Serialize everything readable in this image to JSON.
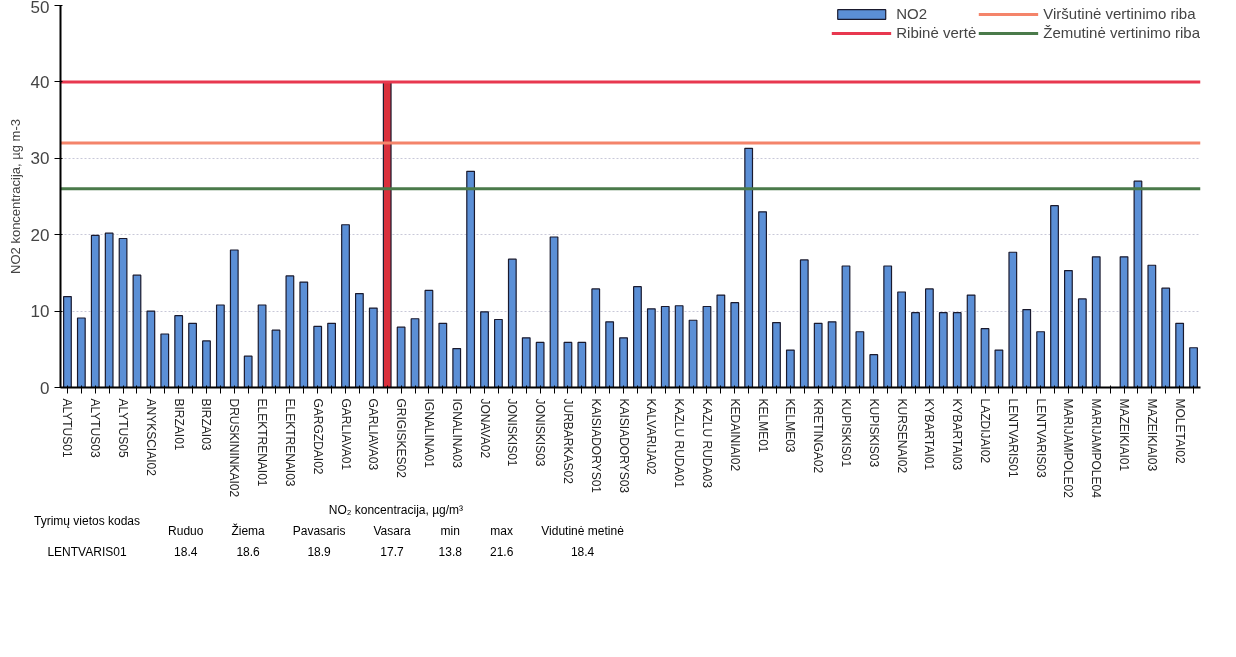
{
  "chart_data": {
    "type": "bar",
    "ylabel": "NO2 koncentracija, µg m-3",
    "categories": [
      "ALYTUS01",
      null,
      "ALYTUS03",
      null,
      "ALYTUS05",
      null,
      "ANYKSCIAI02",
      null,
      "BIRZAI01",
      null,
      "BIRZAI03",
      null,
      "DRUSKININKAI02",
      null,
      "ELEKTRENAI01",
      null,
      "ELEKTRENAI03",
      null,
      "GARGZDAI02",
      null,
      "GARLIAVA01",
      null,
      "GARLIAVA03",
      null,
      "GRIGISKES02",
      null,
      "IGNALINA01",
      null,
      "IGNALINA03",
      null,
      "JONAVA02",
      null,
      "JONISKIS01",
      null,
      "JONISKIS03",
      null,
      "JURBARKAS02",
      null,
      "KAISIADORYS01",
      null,
      "KAISIADORYS03",
      null,
      "KALVARIJA02",
      null,
      "KAZLU RUDA01",
      null,
      "KAZLU RUDA03",
      null,
      "KEDAINIAI02",
      null,
      "KELME01",
      null,
      "KELME03",
      null,
      "KRETINGA02",
      null,
      "KUPISKIS01",
      null,
      "KUPISKIS03",
      null,
      "KURSENAI02",
      null,
      "KYBARTAI01",
      null,
      "KYBARTAI03",
      null,
      "LAZDIJAI02",
      null,
      "LENTVARIS01",
      null,
      "LENTVARIS03",
      null,
      "MARIJAMPOLE02",
      null,
      "MARIJAMPOLE04",
      null,
      "MAZEIKIAI01",
      null,
      "MAZEIKIAI03",
      null,
      "MOLETAI02",
      null
    ],
    "series": [
      {
        "name": "NO2",
        "color": "#5b8fd6",
        "colors": [
          null,
          null,
          null,
          null,
          null,
          null,
          null,
          null,
          null,
          null,
          null,
          null,
          null,
          null,
          null,
          null,
          null,
          null,
          null,
          null,
          null,
          null,
          null,
          "#d9303c",
          null,
          null,
          null,
          null,
          null,
          null,
          null,
          null,
          null,
          null,
          null,
          null,
          null,
          null,
          null,
          null,
          null,
          null,
          null,
          null,
          null,
          null,
          null,
          null,
          null,
          null,
          null,
          null,
          null,
          null,
          null,
          null,
          null,
          null,
          null,
          null,
          null,
          null,
          null,
          null,
          null,
          null,
          null,
          null,
          null,
          null,
          null,
          null,
          null,
          null,
          null,
          null,
          null,
          null,
          null,
          null,
          null,
          null
        ],
        "values": [
          11.9,
          9.1,
          19.9,
          20.2,
          19.5,
          14.7,
          10.0,
          7.0,
          9.4,
          8.4,
          6.1,
          10.8,
          18.0,
          4.1,
          10.8,
          7.5,
          14.6,
          13.8,
          8.0,
          8.4,
          21.3,
          12.3,
          10.4,
          40,
          7.9,
          9.0,
          12.7,
          8.4,
          5.1,
          28.3,
          9.9,
          8.9,
          16.8,
          6.5,
          5.9,
          19.7,
          5.9,
          5.9,
          12.9,
          8.6,
          6.5,
          13.2,
          10.3,
          10.6,
          10.7,
          8.8,
          10.6,
          12.1,
          11.1,
          31.3,
          23.0,
          8.5,
          4.9,
          16.7,
          8.4,
          8.6,
          15.9,
          7.3,
          4.3,
          15.9,
          12.5,
          9.8,
          12.9,
          9.8,
          9.8,
          12.1,
          7.7,
          4.9,
          17.7,
          10.2,
          7.3,
          23.8,
          15.3,
          11.6,
          17.1,
          null,
          17.1,
          27.0,
          16.0,
          13.0,
          8.4,
          5.2
        ]
      }
    ],
    "ylim": [
      0,
      50
    ],
    "yticks": [
      0,
      10,
      20,
      30,
      40,
      50
    ],
    "grid": "y",
    "legend": "top right",
    "ref_lines": [
      {
        "axis": "y",
        "value": 40,
        "label": "Ribinė vertė",
        "color": "#e8384f"
      },
      {
        "axis": "y",
        "value": 32,
        "label": "Viršutinė vertinimo riba",
        "color": "#f4846a"
      },
      {
        "axis": "y",
        "value": 26,
        "label": "Žemutinė vertinimo riba",
        "color": "#4a7a4a"
      }
    ],
    "annotations": [
      "Tyrimų vietos kodas",
      "NO₂ koncentracija, µg/m³",
      "Ruduo",
      "Žiema",
      "Pavasaris",
      "Vasara",
      "min",
      "max",
      "Vidutinė metinė",
      "LENTVARIS01",
      "18.4",
      "18.6",
      "18.9",
      "17.7",
      "13.8",
      "21.6",
      "18.4"
    ]
  }
}
